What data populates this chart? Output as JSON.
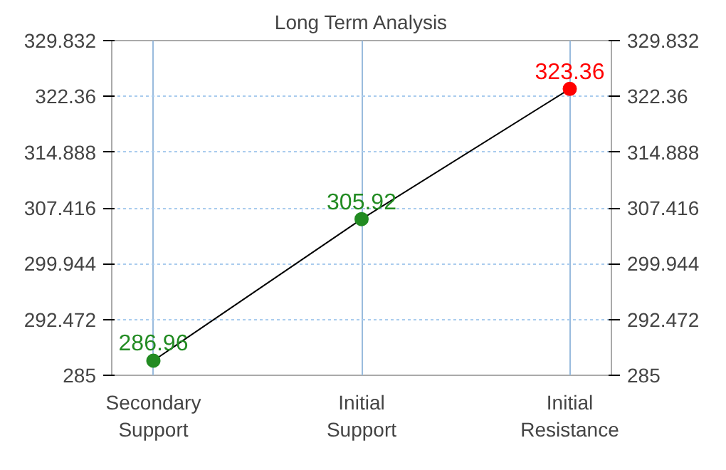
{
  "chart_data": {
    "type": "line",
    "title": "Long Term Analysis",
    "categories": [
      "Secondary Support",
      "Initial Support",
      "Initial Resistance"
    ],
    "series": [
      {
        "color": "#000000",
        "values": [
          286.96,
          305.92,
          323.36
        ],
        "colors": [
          "#228b22",
          "#228b22",
          "#ff0000"
        ]
      }
    ],
    "ylim": [
      285,
      329.832
    ],
    "yticks": [
      285,
      292.472,
      299.944,
      307.416,
      314.888,
      322.36,
      329.832
    ],
    "y2lim": [
      285,
      329.832
    ],
    "y2ticks": [
      285,
      292.472,
      299.944,
      307.416,
      314.888,
      322.36,
      329.832
    ],
    "grid": true,
    "marker": "circle",
    "data_labels": true
  }
}
